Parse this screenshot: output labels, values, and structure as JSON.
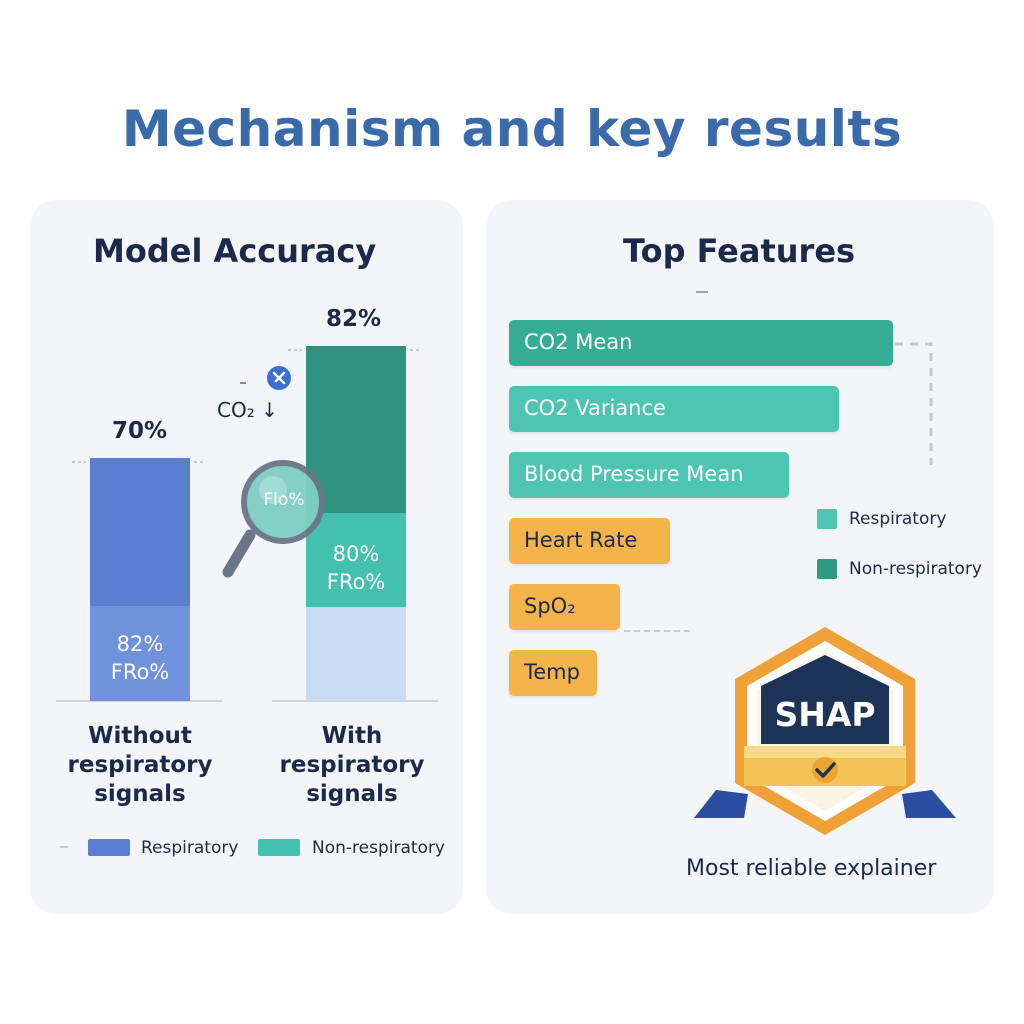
{
  "title": "Mechanism and key results",
  "colors": {
    "respiratory_left": "#5b7fd0",
    "non_respiratory_left": "#45c0ae",
    "bar_dark_teal": "#2f937f",
    "bar_light_teal": "#43c0ae",
    "bar_pale": "#c8daf3",
    "bar_mid": "#6e8fdb",
    "feature_teal": "#35ad94",
    "feature_teal_light": "#4ec5b3",
    "feature_orange": "#f5b449",
    "title_blue": "#3a6aa9",
    "badge_navy": "#1d3257",
    "badge_gold": "#eda23a"
  },
  "icons": {
    "magnifier": "magnifier-icon",
    "pin": "location-pin-icon",
    "check": "check-icon"
  },
  "magnifier_label": "Flo%",
  "co2_annotation": "CO₂ ↓",
  "shap_badge": {
    "label": "SHAP",
    "caption": "Most reliable explainer"
  },
  "chart_data": [
    {
      "type": "bar",
      "title": "Model Accuracy",
      "categories": [
        "Without respiratory signals",
        "With respiratory signals"
      ],
      "category_labels": [
        [
          "Without",
          "respiratory",
          "signals"
        ],
        [
          "With",
          "respiratory",
          "signals"
        ]
      ],
      "values": [
        70,
        82
      ],
      "value_labels": [
        "70%",
        "82%"
      ],
      "inner_labels": [
        [
          "82%",
          "FRo%"
        ],
        [
          "80%",
          "FRo%"
        ]
      ],
      "legend": [
        "Respiratory",
        "Non-respiratory"
      ],
      "unit": "%"
    },
    {
      "type": "bar",
      "orientation": "horizontal",
      "title": "Top Features",
      "categories": [
        "CO2 Mean",
        "CO2 Variance",
        "Blood Pressure Mean",
        "Heart Rate",
        "SpO₂",
        "Temp"
      ],
      "relative_importance": [
        1.0,
        0.86,
        0.73,
        0.42,
        0.29,
        0.23
      ],
      "groups": [
        "non-respiratory",
        "respiratory",
        "respiratory",
        "other",
        "other",
        "other"
      ],
      "legend": [
        "Respiratory",
        "Non-respiratory"
      ]
    }
  ]
}
